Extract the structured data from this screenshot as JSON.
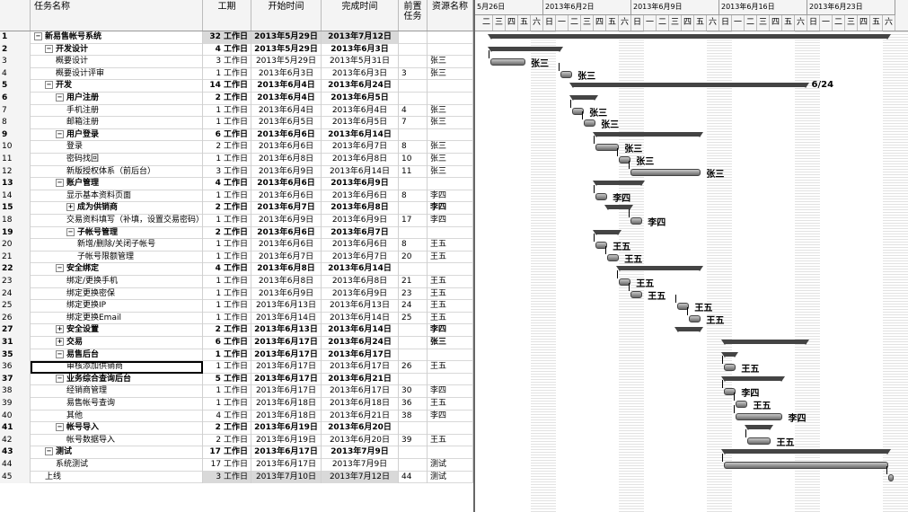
{
  "columns": {
    "name": "任务名称",
    "duration": "工期",
    "start": "开始时间",
    "end": "完成时间",
    "pred": "前置\n任务",
    "resource": "资源名称"
  },
  "timescale": {
    "weeks": [
      "5月26日",
      "2013年6月2日",
      "2013年6月9日",
      "2013年6月16日",
      "2013年6月23日"
    ],
    "days": [
      "二",
      "三",
      "四",
      "五",
      "六",
      "日",
      "一",
      "二",
      "三",
      "四",
      "五",
      "六",
      "日",
      "一",
      "二",
      "三",
      "四",
      "五",
      "六",
      "日",
      "一",
      "二",
      "三",
      "四",
      "五",
      "六",
      "日",
      "一",
      "二",
      "三",
      "四",
      "五",
      "六"
    ]
  },
  "milestone_label": "6/24",
  "tasks": [
    {
      "id": "1",
      "name": "新易售帐号系统",
      "level": 0,
      "summary": true,
      "toggle": "−",
      "dur": "32 工作日",
      "start": "2013年5月29日",
      "end": "2013年7月12日",
      "pred": "",
      "res": ""
    },
    {
      "id": "2",
      "name": "开发设计",
      "level": 1,
      "summary": true,
      "toggle": "−",
      "dur": "4 工作日",
      "start": "2013年5月29日",
      "end": "2013年6月3日",
      "pred": "",
      "res": ""
    },
    {
      "id": "3",
      "name": "概要设计",
      "level": 2,
      "dur": "3 工作日",
      "start": "2013年5月29日",
      "end": "2013年5月31日",
      "pred": "",
      "res": "张三"
    },
    {
      "id": "4",
      "name": "概要设计评审",
      "level": 2,
      "dur": "1 工作日",
      "start": "2013年6月3日",
      "end": "2013年6月3日",
      "pred": "3",
      "res": "张三"
    },
    {
      "id": "5",
      "name": "开发",
      "level": 1,
      "summary": true,
      "toggle": "−",
      "dur": "14 工作日",
      "start": "2013年6月4日",
      "end": "2013年6月24日",
      "pred": "",
      "res": ""
    },
    {
      "id": "6",
      "name": "用户注册",
      "level": 2,
      "summary": true,
      "toggle": "−",
      "dur": "2 工作日",
      "start": "2013年6月4日",
      "end": "2013年6月5日",
      "pred": "",
      "res": ""
    },
    {
      "id": "7",
      "name": "手机注册",
      "level": 3,
      "dur": "1 工作日",
      "start": "2013年6月4日",
      "end": "2013年6月4日",
      "pred": "4",
      "res": "张三"
    },
    {
      "id": "8",
      "name": "邮箱注册",
      "level": 3,
      "dur": "1 工作日",
      "start": "2013年6月5日",
      "end": "2013年6月5日",
      "pred": "7",
      "res": "张三"
    },
    {
      "id": "9",
      "name": "用户登录",
      "level": 2,
      "summary": true,
      "toggle": "−",
      "dur": "6 工作日",
      "start": "2013年6月6日",
      "end": "2013年6月14日",
      "pred": "",
      "res": ""
    },
    {
      "id": "10",
      "name": "登录",
      "level": 3,
      "dur": "2 工作日",
      "start": "2013年6月6日",
      "end": "2013年6月7日",
      "pred": "8",
      "res": "张三"
    },
    {
      "id": "11",
      "name": "密码找回",
      "level": 3,
      "dur": "1 工作日",
      "start": "2013年6月8日",
      "end": "2013年6月8日",
      "pred": "10",
      "res": "张三"
    },
    {
      "id": "12",
      "name": "新版授权体系（前后台）",
      "level": 3,
      "dur": "3 工作日",
      "start": "2013年6月9日",
      "end": "2013年6月14日",
      "pred": "11",
      "res": "张三"
    },
    {
      "id": "13",
      "name": "账户管理",
      "level": 2,
      "summary": true,
      "toggle": "−",
      "dur": "4 工作日",
      "start": "2013年6月6日",
      "end": "2013年6月9日",
      "pred": "",
      "res": ""
    },
    {
      "id": "14",
      "name": "显示基本资料页面",
      "level": 3,
      "dur": "1 工作日",
      "start": "2013年6月6日",
      "end": "2013年6月6日",
      "pred": "8",
      "res": "李四"
    },
    {
      "id": "15",
      "name": "成为供销商",
      "level": 3,
      "summary": true,
      "toggle": "+",
      "dur": "2 工作日",
      "start": "2013年6月7日",
      "end": "2013年6月8日",
      "pred": "",
      "res": "李四"
    },
    {
      "id": "18",
      "name": "交易资料填写（补填，设置交易密码）",
      "level": 3,
      "dur": "1 工作日",
      "start": "2013年6月9日",
      "end": "2013年6月9日",
      "pred": "17",
      "res": "李四"
    },
    {
      "id": "19",
      "name": "子帐号管理",
      "level": 3,
      "summary": true,
      "toggle": "−",
      "dur": "2 工作日",
      "start": "2013年6月6日",
      "end": "2013年6月7日",
      "pred": "",
      "res": ""
    },
    {
      "id": "20",
      "name": "新增/删除/关闭子帐号",
      "level": 4,
      "dur": "1 工作日",
      "start": "2013年6月6日",
      "end": "2013年6月6日",
      "pred": "8",
      "res": "王五"
    },
    {
      "id": "21",
      "name": "子帐号限额管理",
      "level": 4,
      "dur": "1 工作日",
      "start": "2013年6月7日",
      "end": "2013年6月7日",
      "pred": "20",
      "res": "王五"
    },
    {
      "id": "22",
      "name": "安全绑定",
      "level": 2,
      "summary": true,
      "toggle": "−",
      "dur": "4 工作日",
      "start": "2013年6月8日",
      "end": "2013年6月14日",
      "pred": "",
      "res": ""
    },
    {
      "id": "23",
      "name": "绑定/更换手机",
      "level": 3,
      "dur": "1 工作日",
      "start": "2013年6月8日",
      "end": "2013年6月8日",
      "pred": "21",
      "res": "王五"
    },
    {
      "id": "24",
      "name": "绑定更换密保",
      "level": 3,
      "dur": "1 工作日",
      "start": "2013年6月9日",
      "end": "2013年6月9日",
      "pred": "23",
      "res": "王五"
    },
    {
      "id": "25",
      "name": "绑定更换IP",
      "level": 3,
      "dur": "1 工作日",
      "start": "2013年6月13日",
      "end": "2013年6月13日",
      "pred": "24",
      "res": "王五"
    },
    {
      "id": "26",
      "name": "绑定更换Email",
      "level": 3,
      "dur": "1 工作日",
      "start": "2013年6月14日",
      "end": "2013年6月14日",
      "pred": "25",
      "res": "王五"
    },
    {
      "id": "27",
      "name": "安全设置",
      "level": 2,
      "summary": true,
      "toggle": "+",
      "dur": "2 工作日",
      "start": "2013年6月13日",
      "end": "2013年6月14日",
      "pred": "",
      "res": "李四"
    },
    {
      "id": "31",
      "name": "交易",
      "level": 2,
      "summary": true,
      "toggle": "+",
      "dur": "6 工作日",
      "start": "2013年6月17日",
      "end": "2013年6月24日",
      "pred": "",
      "res": "张三"
    },
    {
      "id": "35",
      "name": "易售后台",
      "level": 2,
      "summary": true,
      "toggle": "−",
      "dur": "1 工作日",
      "start": "2013年6月17日",
      "end": "2013年6月17日",
      "pred": "",
      "res": ""
    },
    {
      "id": "36",
      "name": "审核添加供销商",
      "level": 3,
      "selected": true,
      "dur": "1 工作日",
      "start": "2013年6月17日",
      "end": "2013年6月17日",
      "pred": "26",
      "res": "王五"
    },
    {
      "id": "37",
      "name": "业务综合查询后台",
      "level": 2,
      "summary": true,
      "toggle": "−",
      "dur": "5 工作日",
      "start": "2013年6月17日",
      "end": "2013年6月21日",
      "pred": "",
      "res": ""
    },
    {
      "id": "38",
      "name": "经销商管理",
      "level": 3,
      "dur": "1 工作日",
      "start": "2013年6月17日",
      "end": "2013年6月17日",
      "pred": "30",
      "res": "李四"
    },
    {
      "id": "39",
      "name": "易售帐号查询",
      "level": 3,
      "dur": "1 工作日",
      "start": "2013年6月18日",
      "end": "2013年6月18日",
      "pred": "36",
      "res": "王五"
    },
    {
      "id": "40",
      "name": "其他",
      "level": 3,
      "dur": "4 工作日",
      "start": "2013年6月18日",
      "end": "2013年6月21日",
      "pred": "38",
      "res": "李四"
    },
    {
      "id": "41",
      "name": "帐号导入",
      "level": 2,
      "summary": true,
      "toggle": "−",
      "dur": "2 工作日",
      "start": "2013年6月19日",
      "end": "2013年6月20日",
      "pred": "",
      "res": ""
    },
    {
      "id": "42",
      "name": "帐号数据导入",
      "level": 3,
      "dur": "2 工作日",
      "start": "2013年6月19日",
      "end": "2013年6月20日",
      "pred": "39",
      "res": "王五"
    },
    {
      "id": "43",
      "name": "测试",
      "level": 1,
      "summary": true,
      "toggle": "−",
      "dur": "17 工作日",
      "start": "2013年6月17日",
      "end": "2013年7月9日",
      "pred": "",
      "res": ""
    },
    {
      "id": "44",
      "name": "系统测试",
      "level": 2,
      "dur": "17 工作日",
      "start": "2013年6月17日",
      "end": "2013年7月9日",
      "pred": "",
      "res": "测试"
    },
    {
      "id": "45",
      "name": "上线",
      "level": 1,
      "dur": "3 工作日",
      "start": "2013年7月10日",
      "end": "2013年7月12日",
      "pred": "44",
      "res": "测试"
    }
  ],
  "gantt": [
    {
      "type": "summary",
      "s": 0,
      "e": 34,
      "label": ""
    },
    {
      "type": "summary",
      "s": 0,
      "e": 6,
      "label": ""
    },
    {
      "type": "task",
      "s": 0,
      "e": 3,
      "label": "张三"
    },
    {
      "type": "task",
      "s": 6,
      "e": 7,
      "label": "张三"
    },
    {
      "type": "summary",
      "s": 7,
      "e": 27,
      "label": "6/24"
    },
    {
      "type": "summary",
      "s": 7,
      "e": 9,
      "label": ""
    },
    {
      "type": "task",
      "s": 7,
      "e": 8,
      "label": "张三"
    },
    {
      "type": "task",
      "s": 8,
      "e": 9,
      "label": "张三"
    },
    {
      "type": "summary",
      "s": 9,
      "e": 18,
      "label": ""
    },
    {
      "type": "task",
      "s": 9,
      "e": 11,
      "label": "张三"
    },
    {
      "type": "task",
      "s": 11,
      "e": 12,
      "label": "张三"
    },
    {
      "type": "task",
      "s": 12,
      "e": 18,
      "label": "张三"
    },
    {
      "type": "summary",
      "s": 9,
      "e": 13,
      "label": ""
    },
    {
      "type": "task",
      "s": 9,
      "e": 10,
      "label": "李四"
    },
    {
      "type": "summary",
      "s": 10,
      "e": 12,
      "label": ""
    },
    {
      "type": "task",
      "s": 12,
      "e": 13,
      "label": "李四"
    },
    {
      "type": "summary",
      "s": 9,
      "e": 11,
      "label": ""
    },
    {
      "type": "task",
      "s": 9,
      "e": 10,
      "label": "王五"
    },
    {
      "type": "task",
      "s": 10,
      "e": 11,
      "label": "王五"
    },
    {
      "type": "summary",
      "s": 11,
      "e": 18,
      "label": ""
    },
    {
      "type": "task",
      "s": 11,
      "e": 12,
      "label": "王五"
    },
    {
      "type": "task",
      "s": 12,
      "e": 13,
      "label": "王五"
    },
    {
      "type": "task",
      "s": 16,
      "e": 17,
      "label": "王五"
    },
    {
      "type": "task",
      "s": 17,
      "e": 18,
      "label": "王五"
    },
    {
      "type": "summary",
      "s": 16,
      "e": 18,
      "label": ""
    },
    {
      "type": "summary",
      "s": 20,
      "e": 27,
      "label": ""
    },
    {
      "type": "summary",
      "s": 20,
      "e": 21,
      "label": ""
    },
    {
      "type": "task",
      "s": 20,
      "e": 21,
      "label": "王五"
    },
    {
      "type": "summary",
      "s": 20,
      "e": 25,
      "label": ""
    },
    {
      "type": "task",
      "s": 20,
      "e": 21,
      "label": "李四"
    },
    {
      "type": "task",
      "s": 21,
      "e": 22,
      "label": "王五"
    },
    {
      "type": "task",
      "s": 21,
      "e": 25,
      "label": "李四"
    },
    {
      "type": "summary",
      "s": 22,
      "e": 24,
      "label": ""
    },
    {
      "type": "task",
      "s": 22,
      "e": 24,
      "label": "王五"
    },
    {
      "type": "summary",
      "s": 20,
      "e": 34,
      "label": ""
    },
    {
      "type": "task",
      "s": 20,
      "e": 34,
      "label": ""
    },
    {
      "type": "task",
      "s": 34,
      "e": 34,
      "label": ""
    }
  ]
}
